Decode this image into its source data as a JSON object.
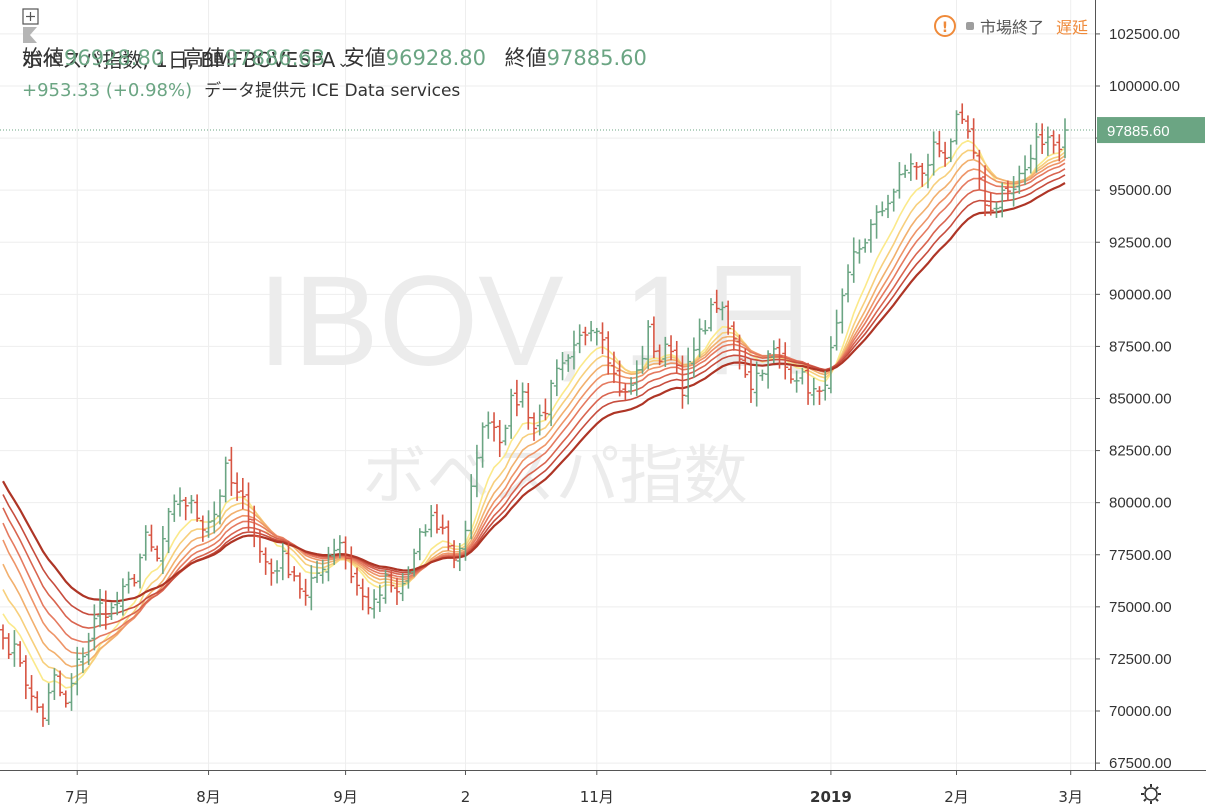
{
  "header": {
    "title": "ボベスパ指数, 1日, BMFBOVESPA",
    "ohlc": [
      {
        "label": "始値",
        "value": "96928.80"
      },
      {
        "label": "高値",
        "value": "97886.63"
      },
      {
        "label": "安値",
        "value": "96928.80"
      },
      {
        "label": "終値",
        "value": "97885.60"
      }
    ],
    "change": "+953.33 (+0.98%)",
    "data_source": "データ提供元 ICE Data services",
    "market_status": "市場終了",
    "delay_label": "遅延",
    "status_icon": "warning-icon"
  },
  "watermark": {
    "symbol": "IBOV, 1日",
    "name": "ボベスパ指数"
  },
  "price_label": "97885.60",
  "settings_icon": "gear-icon",
  "colors": {
    "up": "#6ba583",
    "down": "#d75442",
    "ribbon": [
      "#fbe98a",
      "#f7cf7c",
      "#f2b06e",
      "#ee9468",
      "#e57a60",
      "#d9644f",
      "#c74d3e",
      "#ae3526"
    ]
  },
  "chart_data": {
    "type": "candlestick",
    "y_ticks": [
      "102500.00",
      "100000.00",
      "97500.00",
      "95000.00",
      "92500.00",
      "90000.00",
      "87500.00",
      "85000.00",
      "82500.00",
      "80000.00",
      "77500.00",
      "75000.00",
      "72500.00",
      "70000.00",
      "67500.00"
    ],
    "ylim": [
      67500,
      103000
    ],
    "x_ticks": [
      {
        "label": "7月",
        "day": 13,
        "bold": false
      },
      {
        "label": "8月",
        "day": 36,
        "bold": false
      },
      {
        "label": "9月",
        "day": 60,
        "bold": false
      },
      {
        "label": "2",
        "day": 81,
        "bold": false
      },
      {
        "label": "11月",
        "day": 104,
        "bold": false
      },
      {
        "label": "2019",
        "day": 145,
        "bold": true
      },
      {
        "label": "2月",
        "day": 167,
        "bold": false
      },
      {
        "label": "3月",
        "day": 187,
        "bold": false
      }
    ],
    "last_close": 97885.6,
    "anchors": [
      [
        0,
        73500
      ],
      [
        3,
        72500
      ],
      [
        5,
        70500
      ],
      [
        7,
        69800
      ],
      [
        9,
        71500
      ],
      [
        11,
        70200
      ],
      [
        13,
        72200
      ],
      [
        15,
        73500
      ],
      [
        17,
        75000
      ],
      [
        19,
        74800
      ],
      [
        21,
        75600
      ],
      [
        23,
        76500
      ],
      [
        25,
        78200
      ],
      [
        27,
        77200
      ],
      [
        29,
        79200
      ],
      [
        31,
        80200
      ],
      [
        33,
        79800
      ],
      [
        35,
        79000
      ],
      [
        37,
        79500
      ],
      [
        39,
        81500
      ],
      [
        41,
        80300
      ],
      [
        43,
        79600
      ],
      [
        45,
        77600
      ],
      [
        47,
        76700
      ],
      [
        49,
        77300
      ],
      [
        51,
        76600
      ],
      [
        53,
        75400
      ],
      [
        55,
        76600
      ],
      [
        57,
        77600
      ],
      [
        59,
        78200
      ],
      [
        61,
        76600
      ],
      [
        63,
        75400
      ],
      [
        65,
        75000
      ],
      [
        67,
        76200
      ],
      [
        69,
        75600
      ],
      [
        71,
        76600
      ],
      [
        73,
        78200
      ],
      [
        75,
        79200
      ],
      [
        77,
        78700
      ],
      [
        79,
        77400
      ],
      [
        81,
        78400
      ],
      [
        83,
        82500
      ],
      [
        85,
        84200
      ],
      [
        87,
        83200
      ],
      [
        89,
        84700
      ],
      [
        91,
        85200
      ],
      [
        93,
        83600
      ],
      [
        95,
        84600
      ],
      [
        97,
        86100
      ],
      [
        99,
        86600
      ],
      [
        101,
        87800
      ],
      [
        103,
        88700
      ],
      [
        105,
        88200
      ],
      [
        107,
        86100
      ],
      [
        109,
        85100
      ],
      [
        111,
        86200
      ],
      [
        113,
        88100
      ],
      [
        115,
        86900
      ],
      [
        117,
        87600
      ],
      [
        119,
        85600
      ],
      [
        121,
        87200
      ],
      [
        123,
        88700
      ],
      [
        125,
        89600
      ],
      [
        127,
        88300
      ],
      [
        129,
        87100
      ],
      [
        131,
        85700
      ],
      [
        133,
        86600
      ],
      [
        135,
        87200
      ],
      [
        137,
        86500
      ],
      [
        139,
        86200
      ],
      [
        141,
        85600
      ],
      [
        143,
        85000
      ],
      [
        145,
        87100
      ],
      [
        147,
        89500
      ],
      [
        149,
        91800
      ],
      [
        151,
        92700
      ],
      [
        153,
        93600
      ],
      [
        155,
        94600
      ],
      [
        157,
        95400
      ],
      [
        159,
        96400
      ],
      [
        161,
        95600
      ],
      [
        163,
        97100
      ],
      [
        165,
        96800
      ],
      [
        167,
        98200
      ],
      [
        169,
        97700
      ],
      [
        171,
        95200
      ],
      [
        173,
        93900
      ],
      [
        175,
        95000
      ],
      [
        177,
        94800
      ],
      [
        179,
        96000
      ],
      [
        181,
        97600
      ],
      [
        183,
        97400
      ],
      [
        185,
        96900
      ],
      [
        186,
        97886
      ]
    ],
    "ribbon_periods": [
      8,
      11,
      14,
      17,
      20,
      24,
      28,
      33
    ],
    "ribbon_start": [
      [
        0,
        75000
      ],
      [
        0,
        76300
      ],
      [
        0,
        77600
      ],
      [
        0,
        78800
      ],
      [
        0,
        79600
      ],
      [
        0,
        80300
      ],
      [
        0,
        80900
      ],
      [
        0,
        81500
      ]
    ]
  }
}
